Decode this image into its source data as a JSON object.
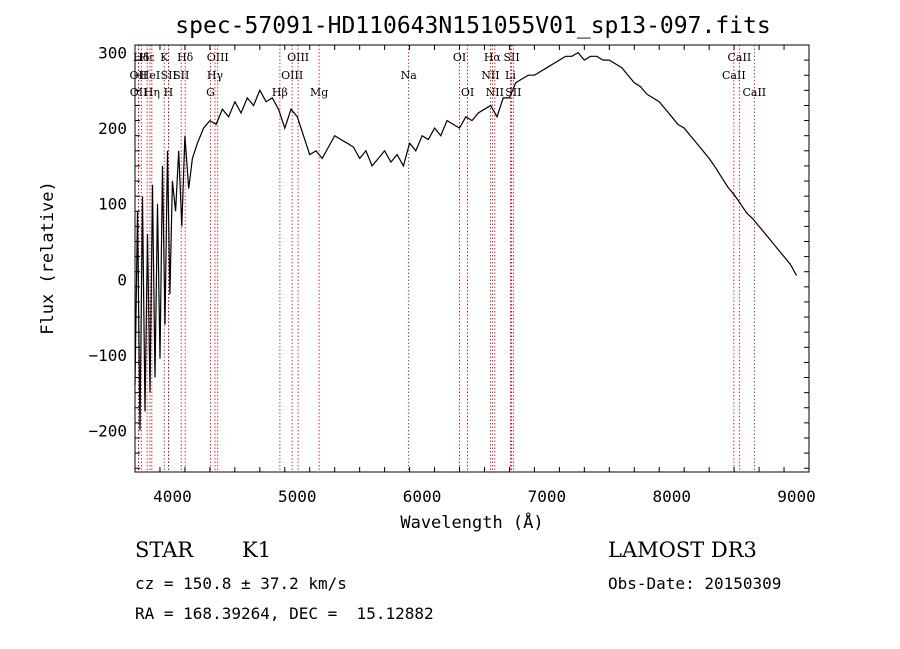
{
  "chart_data": {
    "type": "line",
    "title": "spec-57091-HD110643N151055V01_sp13-097.fits",
    "xlabel": "Wavelength (Å)",
    "ylabel": "Flux (relative)",
    "xlim": [
      3700,
      9100
    ],
    "ylim": [
      -255,
      310
    ],
    "xticks": [
      "4000",
      "5000",
      "6000",
      "7000",
      "8000",
      "9000"
    ],
    "xtick_values": [
      4000,
      5000,
      6000,
      7000,
      8000,
      9000
    ],
    "yticks": [
      "300",
      "200",
      "100",
      "0",
      "−100",
      "−200"
    ],
    "ytick_values": [
      300,
      200,
      100,
      0,
      -100,
      -200
    ],
    "series": [
      {
        "x": [
          3700,
          3720,
          3740,
          3760,
          3780,
          3800,
          3820,
          3840,
          3860,
          3880,
          3900,
          3920,
          3940,
          3960,
          3980,
          4000,
          4025,
          4050,
          4075,
          4100,
          4130,
          4160,
          4200,
          4250,
          4300,
          4350,
          4400,
          4450,
          4500,
          4550,
          4600,
          4650,
          4700,
          4750,
          4800,
          4850,
          4900,
          4950,
          5000,
          5050,
          5100,
          5150,
          5200,
          5250,
          5300,
          5350,
          5400,
          5450,
          5500,
          5550,
          5600,
          5650,
          5700,
          5750,
          5800,
          5850,
          5900,
          5950,
          6000,
          6050,
          6100,
          6150,
          6200,
          6250,
          6300,
          6350,
          6400,
          6450,
          6500,
          6550,
          6600,
          6650,
          6700,
          6750,
          6800,
          6850,
          6900,
          6950,
          7000,
          7050,
          7100,
          7150,
          7200,
          7250,
          7300,
          7350,
          7400,
          7450,
          7500,
          7550,
          7600,
          7650,
          7700,
          7750,
          7800,
          7850,
          7900,
          7950,
          8000,
          8050,
          8100,
          8150,
          8200,
          8250,
          8300,
          8350,
          8400,
          8450,
          8500,
          8550,
          8600,
          8650,
          8700,
          8750,
          8800,
          8850,
          8900,
          8950,
          9000
        ],
        "values": [
          -140,
          90,
          -200,
          110,
          -175,
          60,
          -150,
          125,
          -130,
          100,
          -105,
          150,
          -60,
          170,
          -20,
          130,
          90,
          170,
          70,
          190,
          120,
          160,
          180,
          200,
          210,
          205,
          225,
          215,
          235,
          220,
          240,
          230,
          250,
          235,
          240,
          225,
          200,
          225,
          215,
          190,
          165,
          170,
          160,
          175,
          190,
          185,
          180,
          175,
          160,
          170,
          150,
          160,
          170,
          155,
          165,
          150,
          180,
          170,
          190,
          185,
          200,
          190,
          210,
          205,
          200,
          215,
          210,
          220,
          225,
          230,
          215,
          240,
          240,
          260,
          265,
          270,
          270,
          275,
          280,
          285,
          290,
          295,
          295,
          300,
          290,
          295,
          295,
          290,
          290,
          285,
          280,
          270,
          260,
          255,
          245,
          240,
          235,
          225,
          215,
          205,
          200,
          190,
          180,
          170,
          160,
          148,
          135,
          122,
          112,
          100,
          88,
          80,
          70,
          60,
          50,
          40,
          30,
          20,
          5
        ]
      }
    ],
    "lines": [
      {
        "label": "Hδ",
        "w": 3750,
        "row": 0
      },
      {
        "label": "OII",
        "w": 3727,
        "row": 1
      },
      {
        "label": "OII",
        "w": 3729,
        "row": 2
      },
      {
        "label": "Hε",
        "w": 3797,
        "row": 0
      },
      {
        "label": "HeI",
        "w": 3820,
        "row": 1
      },
      {
        "label": "Hη",
        "w": 3835,
        "row": 2
      },
      {
        "label": "K",
        "w": 3934,
        "row": 0
      },
      {
        "label": "SII",
        "w": 3970,
        "row": 1
      },
      {
        "label": "H",
        "w": 3968,
        "row": 2
      },
      {
        "label": "Hδ",
        "w": 4102,
        "row": 0
      },
      {
        "label": "SII",
        "w": 4070,
        "row": 1
      },
      {
        "label": "OIII",
        "w": 4363,
        "row": 0
      },
      {
        "label": "Hγ",
        "w": 4341,
        "row": 1
      },
      {
        "label": "G",
        "w": 4305,
        "row": 2
      },
      {
        "label": "OIII",
        "w": 5007,
        "row": 0
      },
      {
        "label": "OIII",
        "w": 4959,
        "row": 1
      },
      {
        "label": "Hβ",
        "w": 4861,
        "row": 2
      },
      {
        "label": "Mg",
        "w": 5175,
        "row": 2
      },
      {
        "label": "Na",
        "w": 5893,
        "row": 1
      },
      {
        "label": "OI",
        "w": 6300,
        "row": 0
      },
      {
        "label": "OI",
        "w": 6364,
        "row": 2
      },
      {
        "label": "Hα",
        "w": 6563,
        "row": 0
      },
      {
        "label": "NII",
        "w": 6548,
        "row": 1
      },
      {
        "label": "NII",
        "w": 6583,
        "row": 2
      },
      {
        "label": "SII",
        "w": 6717,
        "row": 0
      },
      {
        "label": "Li",
        "w": 6708,
        "row": 1
      },
      {
        "label": "SII",
        "w": 6731,
        "row": 2
      },
      {
        "label": "CaII",
        "w": 8542,
        "row": 0
      },
      {
        "label": "CaII",
        "w": 8498,
        "row": 1
      },
      {
        "label": "CaII",
        "w": 8662,
        "row": 2
      }
    ]
  },
  "info": {
    "class": "STAR",
    "subclass": "K1",
    "survey": "LAMOST DR3",
    "cz": "cz = 150.8 ± 37.2 km/s",
    "obsdate": "Obs-Date: 20150309",
    "radec": "RA = 168.39264, DEC =  15.12882"
  }
}
